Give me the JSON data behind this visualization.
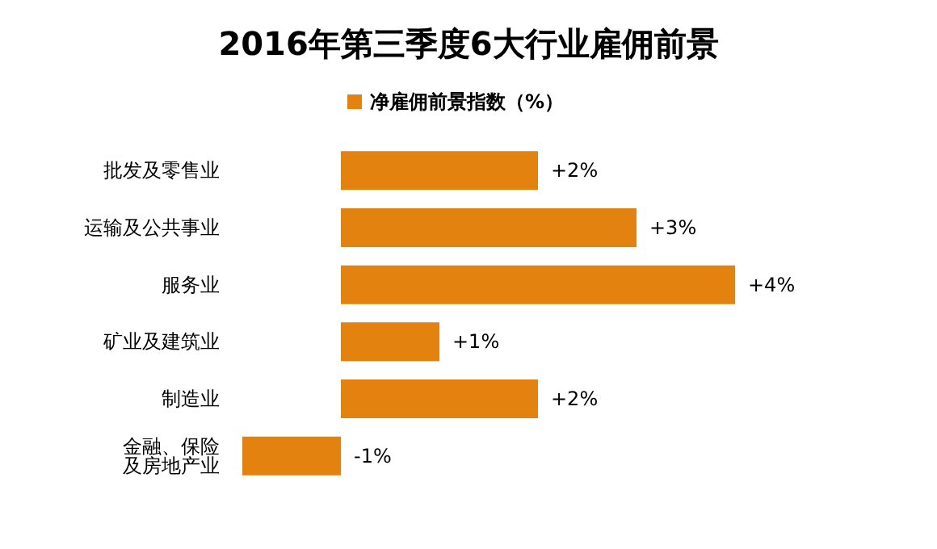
{
  "chart_data": {
    "type": "bar",
    "orientation": "horizontal",
    "title": "2016年第三季度6大行业雇佣前景",
    "categories": [
      "批发及零售业",
      "运输及公共事业",
      "服务业",
      "矿业及建筑业",
      "制造业",
      "金融、保险及房地产业"
    ],
    "series": [
      {
        "name": "净雇佣前景指数（%）",
        "color": "#e4820f",
        "values": [
          2,
          3,
          4,
          1,
          2,
          -1
        ],
        "value_labels": [
          "+2%",
          "+3%",
          "+4%",
          "+1%",
          "+2%",
          "-1%"
        ]
      }
    ],
    "legend": "top",
    "grid": false,
    "tick_labels": "y"
  }
}
